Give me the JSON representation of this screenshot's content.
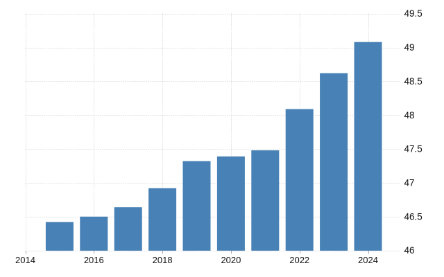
{
  "chart_data": {
    "type": "bar",
    "title": "",
    "xlabel": "",
    "ylabel": "",
    "categories": [
      2015,
      2016,
      2017,
      2018,
      2019,
      2020,
      2021,
      2022,
      2023,
      2024
    ],
    "values": [
      46.42,
      46.5,
      46.64,
      46.92,
      47.32,
      47.39,
      47.48,
      48.09,
      48.62,
      49.08
    ],
    "x_ticks": [
      2014,
      2016,
      2018,
      2020,
      2022,
      2024
    ],
    "x_tick_labels": [
      "2014",
      "2016",
      "2018",
      "2020",
      "2022",
      "2024"
    ],
    "y_ticks": [
      46,
      46.5,
      47,
      47.5,
      48,
      48.5,
      49,
      49.5
    ],
    "y_tick_labels": [
      "46",
      "46.5",
      "47",
      "47.5",
      "48",
      "48.5",
      "49",
      "49.5"
    ],
    "xlim": [
      2014,
      2025
    ],
    "ylim": [
      46,
      49.5
    ],
    "y_axis_side": "right",
    "grid": "dotted",
    "legend": null,
    "colors": {
      "bar": "#4781b5",
      "grid": "#c8c8c8",
      "tick_mark": "#a8a8a8",
      "label": "#111111",
      "background": "#ffffff"
    }
  }
}
